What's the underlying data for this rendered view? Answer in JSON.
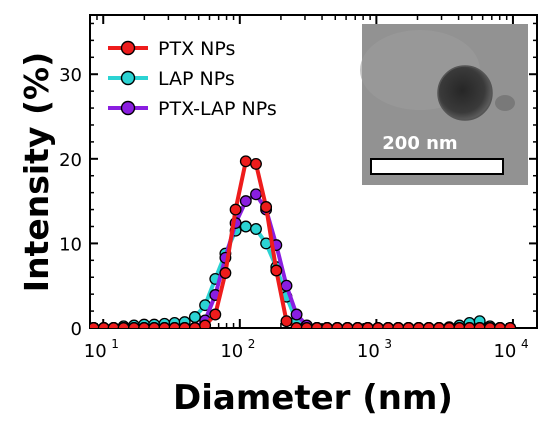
{
  "chart_data": {
    "type": "scatter",
    "xlabel": "Diameter (nm)",
    "ylabel": "Intensity (%)",
    "xscale": "log",
    "xlim": [
      8,
      15000
    ],
    "ylim": [
      0,
      37
    ],
    "y_ticks": [
      0,
      10,
      20,
      30
    ],
    "x_ticks": [
      {
        "value": 10,
        "base": "10",
        "exp": "1"
      },
      {
        "value": 100,
        "base": "10",
        "exp": "2"
      },
      {
        "value": 1000,
        "base": "10",
        "exp": "3"
      },
      {
        "value": 10000,
        "base": "10",
        "exp": "4"
      }
    ],
    "legend_position": "top-left",
    "grid": false,
    "series": [
      {
        "name": "PTX NPs",
        "color": "#ee1c1c",
        "x": [
          8.5,
          10.1,
          11.9,
          14.1,
          16.8,
          19.9,
          23.6,
          28.1,
          33.3,
          39.5,
          46.9,
          55.7,
          66.1,
          78.5,
          93.2,
          110.6,
          131.3,
          155.8,
          185.0,
          219.6,
          260.7,
          309.4,
          367.3,
          436.0,
          517.6,
          614.4,
          729.3,
          865.7,
          1027.6,
          1219.9,
          1448.0,
          1718.9,
          2040.4,
          2422.0,
          2875.0,
          3412.8,
          4051.2,
          4809.0,
          5708.5,
          6776.3,
          8043.8,
          9548.4
        ],
        "y": [
          0,
          0,
          0,
          0,
          0,
          0,
          0,
          0,
          0,
          0,
          0,
          0.3,
          1.6,
          6.5,
          14.0,
          19.7,
          19.4,
          14.3,
          6.8,
          0.8,
          0,
          0,
          0,
          0,
          0,
          0,
          0,
          0,
          0,
          0,
          0,
          0,
          0,
          0,
          0,
          0,
          0,
          0,
          0,
          0,
          0,
          0
        ]
      },
      {
        "name": "LAP NPs",
        "color": "#2bd3d3",
        "x": [
          8.5,
          10.1,
          11.9,
          14.1,
          16.8,
          19.9,
          23.6,
          28.1,
          33.3,
          39.5,
          46.9,
          55.7,
          66.1,
          78.5,
          93.2,
          110.6,
          131.3,
          155.8,
          185.0,
          219.6,
          260.7,
          309.4,
          367.3,
          436.0,
          517.6,
          614.4,
          729.3,
          865.7,
          1027.6,
          1219.9,
          1448.0,
          1718.9,
          2040.4,
          2422.0,
          2875.0,
          3412.8,
          4051.2,
          4809.0,
          5708.5,
          6776.3,
          8043.8,
          9548.4
        ],
        "y": [
          0,
          0,
          0,
          0.2,
          0.3,
          0.4,
          0.4,
          0.5,
          0.6,
          0.7,
          1.3,
          2.7,
          5.8,
          8.8,
          11.5,
          12.0,
          11.7,
          10.0,
          7.2,
          3.7,
          0.8,
          0.2,
          0,
          0,
          0,
          0,
          0,
          0,
          0,
          0,
          0,
          0,
          0,
          0,
          0,
          0.1,
          0.3,
          0.6,
          0.8,
          0.2,
          0,
          0
        ]
      },
      {
        "name": "PTX-LAP NPs",
        "color": "#8a1ee0",
        "x": [
          8.5,
          10.1,
          11.9,
          14.1,
          16.8,
          19.9,
          23.6,
          28.1,
          33.3,
          39.5,
          46.9,
          55.7,
          66.1,
          78.5,
          93.2,
          110.6,
          131.3,
          155.8,
          185.0,
          219.6,
          260.7,
          309.4,
          367.3,
          436.0,
          517.6,
          614.4,
          729.3,
          865.7,
          1027.6,
          1219.9,
          1448.0,
          1718.9,
          2040.4,
          2422.0,
          2875.0,
          3412.8,
          4051.2,
          4809.0,
          5708.5,
          6776.3,
          8043.8,
          9548.4
        ],
        "y": [
          0,
          0,
          0,
          0,
          0,
          0,
          0,
          0,
          0,
          0,
          0,
          0.9,
          3.9,
          8.3,
          12.4,
          15.0,
          15.8,
          14.0,
          9.8,
          5.0,
          1.6,
          0.3,
          0,
          0,
          0,
          0,
          0,
          0,
          0,
          0,
          0,
          0,
          0,
          0,
          0,
          0,
          0,
          0,
          0,
          0,
          0,
          0
        ]
      }
    ],
    "inset": {
      "type": "TEM micrograph",
      "scale_bar_label": "200 nm"
    }
  }
}
